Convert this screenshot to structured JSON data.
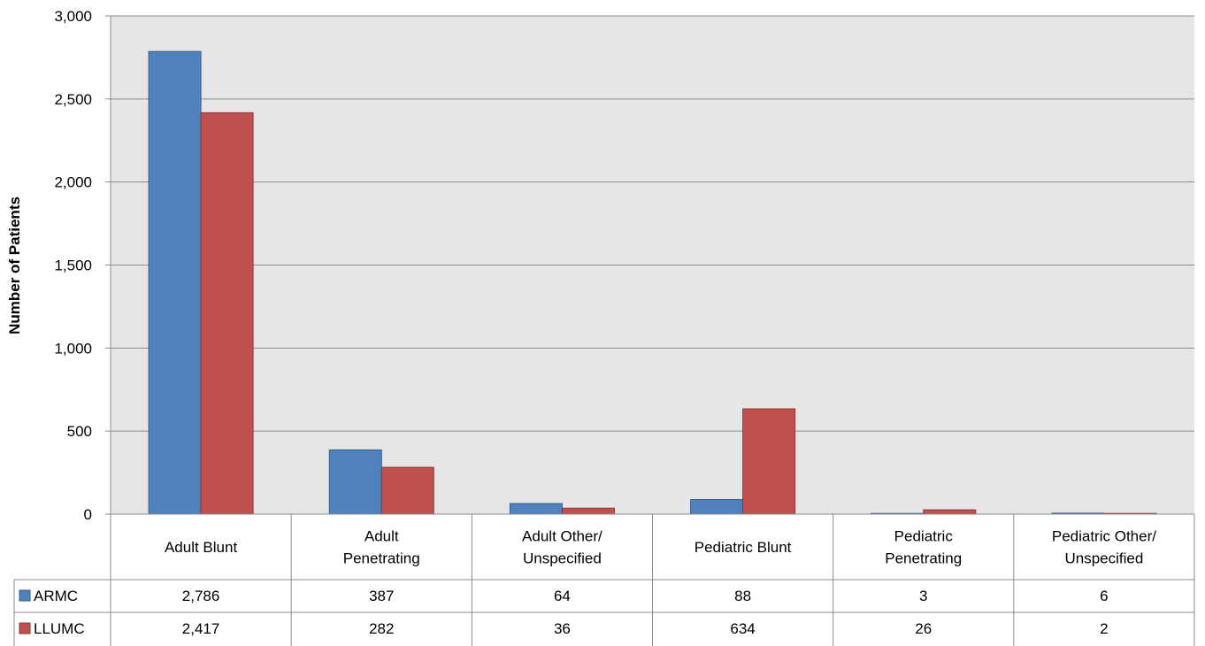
{
  "chart_data": {
    "type": "bar",
    "categories": [
      [
        "Adult Blunt"
      ],
      [
        "Adult",
        "Penetrating"
      ],
      [
        "Adult Other/",
        "Unspecified"
      ],
      [
        "Pediatric Blunt"
      ],
      [
        "Pediatric",
        "Penetrating"
      ],
      [
        "Pediatric Other/",
        "Unspecified"
      ]
    ],
    "series": [
      {
        "name": "ARMC",
        "color": "#4F81BD",
        "values": [
          2786,
          387,
          64,
          88,
          3,
          6
        ],
        "labels": [
          "2,786",
          "387",
          "64",
          "88",
          "3",
          "6"
        ]
      },
      {
        "name": "LLUMC",
        "color": "#C0504D",
        "values": [
          2417,
          282,
          36,
          634,
          26,
          2
        ],
        "labels": [
          "2,417",
          "282",
          "36",
          "634",
          "26",
          "2"
        ]
      }
    ],
    "ylabel": "Number of Patients",
    "ylim": [
      0,
      3000
    ],
    "yticks": [
      0,
      500,
      1000,
      1500,
      2000,
      2500,
      3000
    ],
    "ytick_labels": [
      "0",
      "500",
      "1,000",
      "1,500",
      "2,000",
      "2,500",
      "3,000"
    ],
    "grid": true,
    "legend": "data-table",
    "plot_background": "#E6E6E6"
  }
}
